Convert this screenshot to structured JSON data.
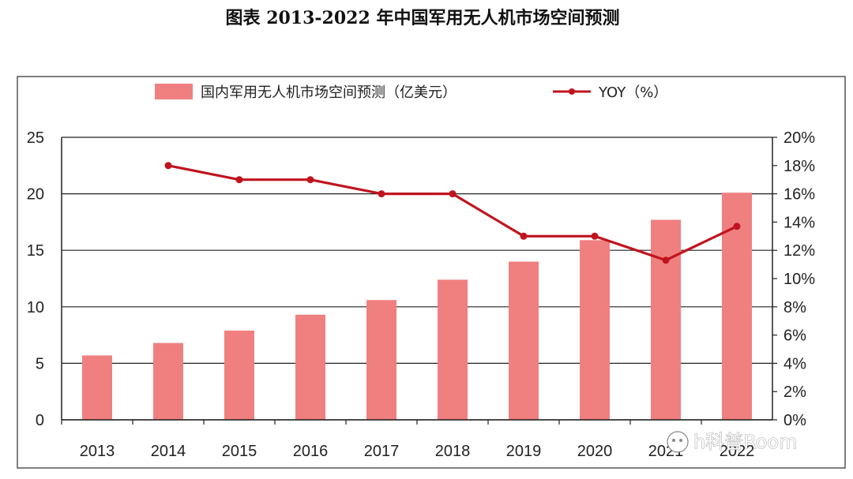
{
  "page": {
    "title": "图表    2013-2022 年中国军用无人机市场空间预测",
    "watermark": "h科普Room"
  },
  "colors": {
    "bar": "#f08080",
    "line": "#c0141e",
    "grid": "#222222",
    "frame": "#555555"
  },
  "chart_data": {
    "type": "bar",
    "title": "图表    2013-2022 年中国军用无人机市场空间预测",
    "categories": [
      "2013",
      "2014",
      "2015",
      "2016",
      "2017",
      "2018",
      "2019",
      "2020",
      "2021",
      "2022"
    ],
    "series": [
      {
        "name": "国内军用无人机市场空间预测（亿美元）",
        "type": "bar",
        "axis": "left",
        "values": [
          5.7,
          6.8,
          7.9,
          9.3,
          10.6,
          12.4,
          14.0,
          15.9,
          17.7,
          20.1
        ]
      },
      {
        "name": "YOY（%）",
        "type": "line",
        "axis": "right",
        "values": [
          null,
          18.0,
          17.0,
          17.0,
          16.0,
          16.0,
          13.0,
          13.0,
          11.3,
          13.7
        ]
      }
    ],
    "y_left": {
      "ylim": [
        0,
        25
      ],
      "ticks": [
        "0",
        "5",
        "10",
        "15",
        "20",
        "25"
      ]
    },
    "y_right": {
      "ylim": [
        0,
        20
      ],
      "ticks": [
        "0%",
        "2%",
        "4%",
        "6%",
        "8%",
        "10%",
        "12%",
        "14%",
        "16%",
        "18%",
        "20%"
      ]
    },
    "grid": true,
    "legend": "top"
  }
}
